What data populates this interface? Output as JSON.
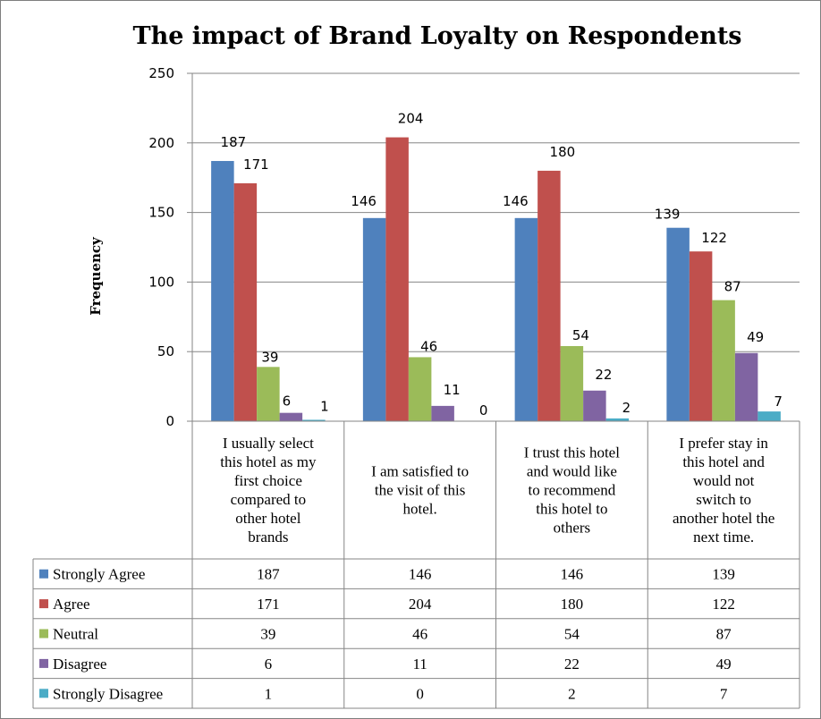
{
  "chart_data": {
    "type": "bar",
    "title": "The impact of Brand Loyalty on Respondents",
    "xlabel": "",
    "ylabel": "Frequency",
    "ylim": [
      0,
      250
    ],
    "yticks": [
      0,
      50,
      100,
      150,
      200,
      250
    ],
    "grid": true,
    "legend": "data-table-left",
    "categories": [
      [
        "I usually select",
        "this hotel as my",
        "first choice",
        "compared to",
        "other hotel",
        "brands"
      ],
      [
        "I am satisfied to",
        "the visit of this",
        "hotel."
      ],
      [
        "I trust this hotel",
        "and would like",
        "to recommend",
        "this hotel to",
        "others"
      ],
      [
        "I prefer stay in",
        "this hotel and",
        "would not",
        "switch to",
        "another hotel the",
        "next time."
      ]
    ],
    "series": [
      {
        "name": "Strongly Agree",
        "color": "#4f81bd",
        "values": [
          187,
          146,
          146,
          139
        ]
      },
      {
        "name": "Agree",
        "color": "#c0504d",
        "values": [
          171,
          204,
          180,
          122
        ]
      },
      {
        "name": "Neutral",
        "color": "#9bbb59",
        "values": [
          39,
          46,
          54,
          87
        ]
      },
      {
        "name": "Disagree",
        "color": "#8064a2",
        "values": [
          6,
          11,
          22,
          49
        ]
      },
      {
        "name": "Strongly Disagree",
        "color": "#4bacc6",
        "values": [
          1,
          0,
          2,
          7
        ]
      }
    ]
  }
}
